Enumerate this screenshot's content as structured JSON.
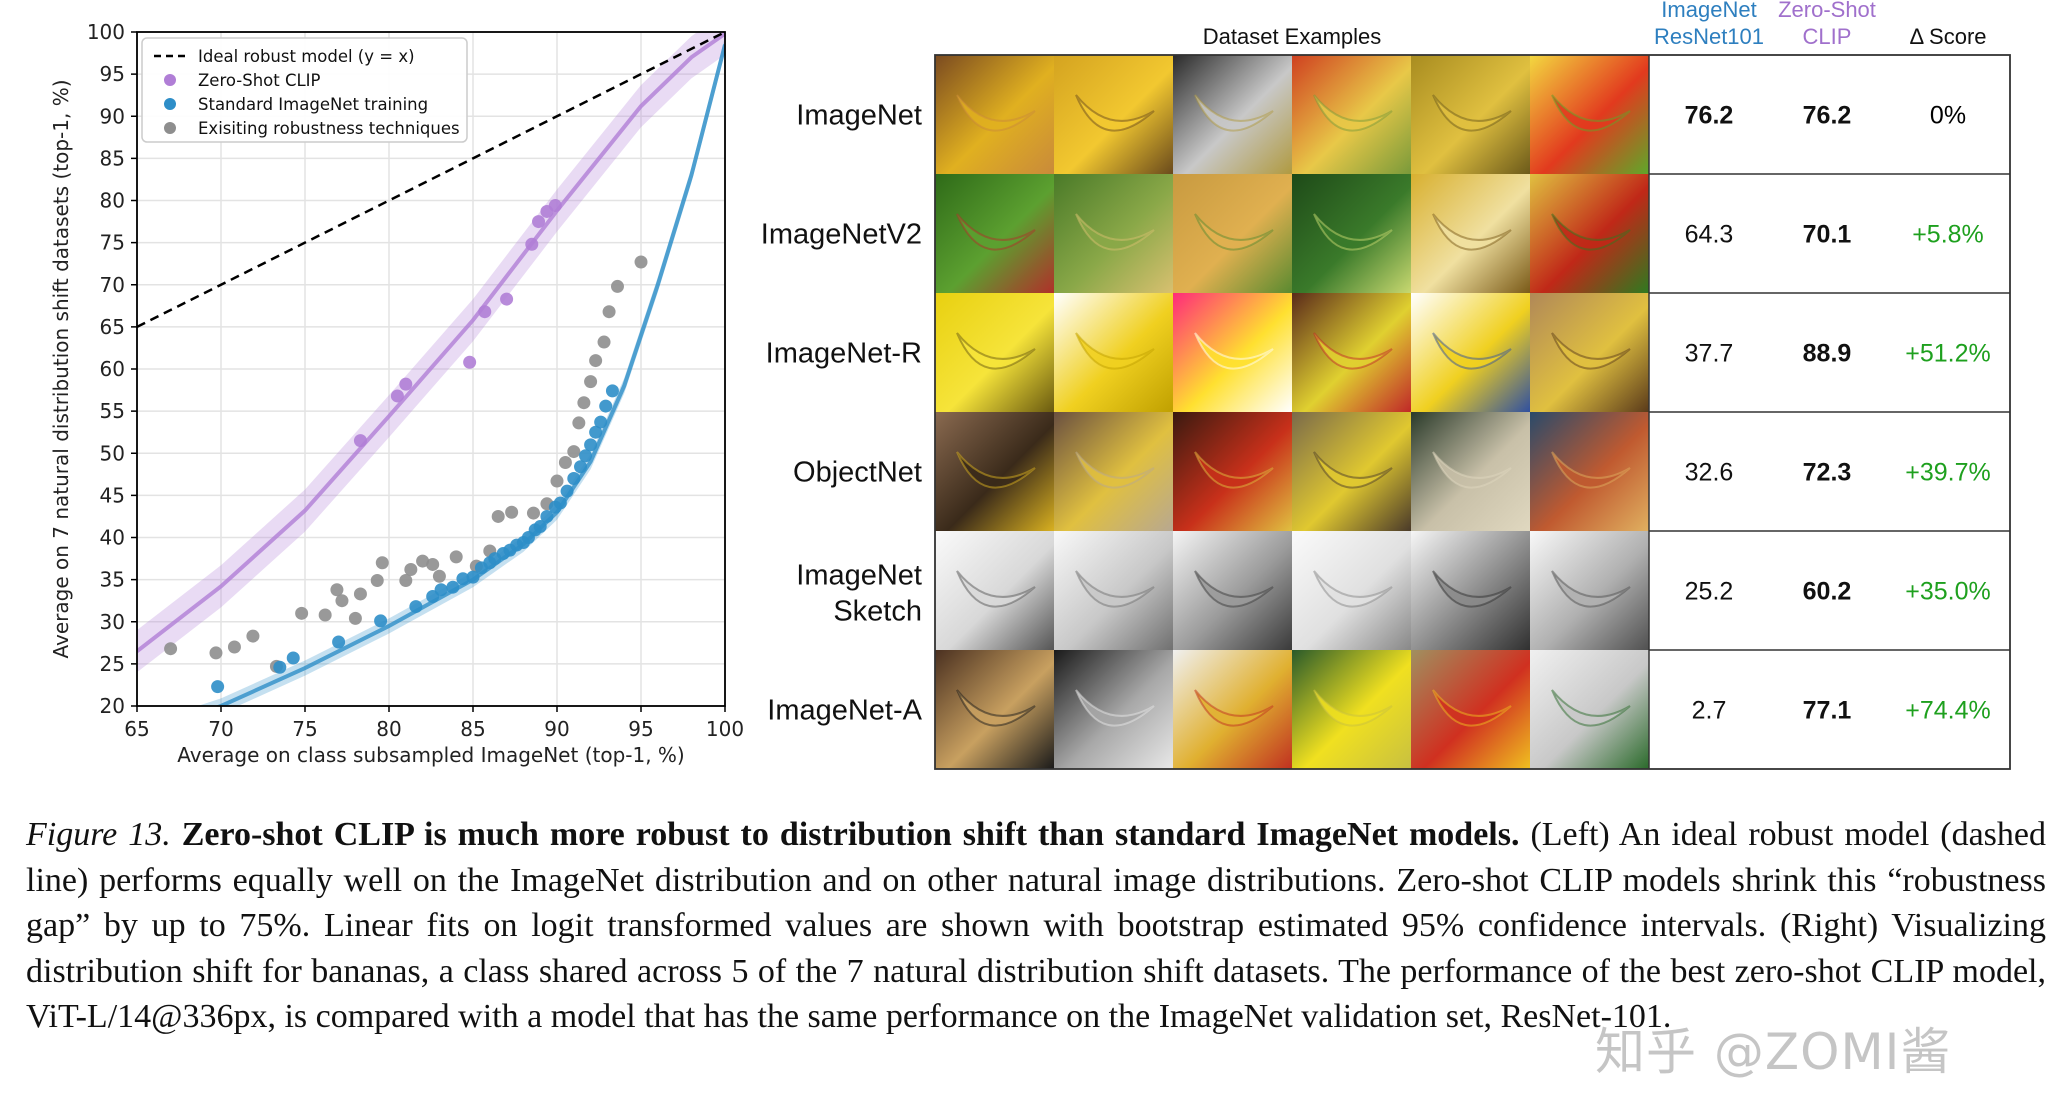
{
  "chart_data": {
    "type": "scatter",
    "xlabel": "Average on class subsampled ImageNet (top-1, %)",
    "ylabel": "Average on 7 natural distribution shift datasets (top-1, %)",
    "xlim": [
      65,
      100
    ],
    "ylim": [
      20,
      100
    ],
    "xticks": [
      "65",
      "70",
      "75",
      "80",
      "85",
      "90",
      "95",
      "100"
    ],
    "yticks": [
      "20",
      "25",
      "30",
      "35",
      "40",
      "45",
      "50",
      "55",
      "60",
      "65",
      "70",
      "75",
      "80",
      "85",
      "90",
      "95",
      "100"
    ],
    "grid": true,
    "legend_position": "top-left",
    "legend": [
      {
        "label": "Ideal robust model (y = x)",
        "marker": "dashed-line",
        "color": "#000000"
      },
      {
        "label": "Zero-Shot CLIP",
        "marker": "dot",
        "color": "#b07ed6"
      },
      {
        "label": "Standard ImageNet training",
        "marker": "dot",
        "color": "#2e8ec8"
      },
      {
        "label": "Exisiting robustness techniques",
        "marker": "dot",
        "color": "#8e8e8e"
      }
    ],
    "series": [
      {
        "name": "Zero-Shot CLIP",
        "color": "#b07ed6",
        "points": [
          [
            78.3,
            51.5
          ],
          [
            80.5,
            56.8
          ],
          [
            81.0,
            58.2
          ],
          [
            84.8,
            60.8
          ],
          [
            85.7,
            66.8
          ],
          [
            87.0,
            68.3
          ],
          [
            88.5,
            74.8
          ],
          [
            88.9,
            77.5
          ],
          [
            89.4,
            78.7
          ],
          [
            89.9,
            79.4
          ]
        ]
      },
      {
        "name": "Standard ImageNet training",
        "color": "#2e8ec8",
        "points": [
          [
            69.8,
            22.3
          ],
          [
            73.5,
            24.6
          ],
          [
            74.3,
            25.7
          ],
          [
            77.0,
            27.6
          ],
          [
            79.5,
            30.1
          ],
          [
            81.6,
            31.8
          ],
          [
            82.6,
            33.0
          ],
          [
            83.1,
            33.8
          ],
          [
            83.8,
            34.1
          ],
          [
            84.4,
            35.1
          ],
          [
            85.0,
            35.3
          ],
          [
            85.5,
            36.4
          ],
          [
            86.0,
            37.0
          ],
          [
            86.3,
            37.5
          ],
          [
            86.8,
            38.1
          ],
          [
            87.2,
            38.5
          ],
          [
            87.6,
            39.1
          ],
          [
            88.0,
            39.4
          ],
          [
            88.3,
            40.0
          ],
          [
            88.7,
            40.9
          ],
          [
            89.0,
            41.3
          ],
          [
            89.4,
            42.5
          ],
          [
            89.9,
            43.6
          ],
          [
            90.2,
            44.1
          ],
          [
            90.6,
            45.5
          ],
          [
            91.0,
            47.0
          ],
          [
            91.4,
            48.4
          ],
          [
            91.7,
            49.7
          ],
          [
            92.0,
            51.0
          ],
          [
            92.3,
            52.5
          ],
          [
            92.6,
            53.7
          ],
          [
            92.9,
            55.6
          ],
          [
            93.3,
            57.4
          ]
        ]
      },
      {
        "name": "Exisiting robustness techniques",
        "color": "#8e8e8e",
        "points": [
          [
            67.0,
            26.8
          ],
          [
            69.7,
            26.3
          ],
          [
            70.8,
            27.0
          ],
          [
            71.9,
            28.3
          ],
          [
            73.3,
            24.7
          ],
          [
            74.8,
            31.0
          ],
          [
            76.2,
            30.8
          ],
          [
            76.9,
            33.8
          ],
          [
            77.2,
            32.5
          ],
          [
            78.0,
            30.4
          ],
          [
            78.3,
            33.3
          ],
          [
            79.3,
            34.9
          ],
          [
            79.6,
            37.0
          ],
          [
            81.0,
            34.9
          ],
          [
            81.3,
            36.2
          ],
          [
            82.0,
            37.2
          ],
          [
            82.6,
            36.8
          ],
          [
            83.0,
            35.4
          ],
          [
            84.0,
            37.7
          ],
          [
            85.2,
            36.6
          ],
          [
            86.0,
            38.4
          ],
          [
            86.5,
            42.5
          ],
          [
            87.3,
            43.0
          ],
          [
            88.6,
            42.9
          ],
          [
            89.4,
            44.0
          ],
          [
            90.0,
            46.7
          ],
          [
            90.5,
            48.9
          ],
          [
            91.0,
            50.2
          ],
          [
            91.3,
            53.6
          ],
          [
            91.6,
            56.0
          ],
          [
            92.0,
            58.5
          ],
          [
            92.3,
            61.0
          ],
          [
            92.8,
            63.2
          ],
          [
            93.1,
            66.8
          ],
          [
            93.6,
            69.8
          ],
          [
            95.0,
            72.7
          ]
        ]
      }
    ],
    "reference_line": {
      "name": "Ideal robust model (y = x)",
      "x": [
        65,
        100
      ],
      "y": [
        65,
        100
      ]
    },
    "fits": [
      {
        "name": "Zero-Shot CLIP fit",
        "color": "#b07ed6",
        "points": [
          [
            65,
            26.5
          ],
          [
            70,
            34.2
          ],
          [
            75,
            43.2
          ],
          [
            80,
            54.4
          ],
          [
            85,
            65.8
          ],
          [
            90,
            78.8
          ],
          [
            95,
            91.2
          ],
          [
            98,
            97.0
          ],
          [
            100,
            99.8
          ]
        ],
        "band": 2.5
      },
      {
        "name": "Standard ImageNet training fit",
        "color": "#2e8ec8",
        "points": [
          [
            68,
            18.7
          ],
          [
            70,
            20.0
          ],
          [
            75,
            24.5
          ],
          [
            80,
            29.5
          ],
          [
            85,
            35.0
          ],
          [
            88,
            39.2
          ],
          [
            90,
            43.0
          ],
          [
            92,
            49.0
          ],
          [
            94,
            58.0
          ],
          [
            96,
            70.0
          ],
          [
            98,
            83.0
          ],
          [
            100,
            98.5
          ]
        ],
        "band": 0.9
      }
    ]
  },
  "table": {
    "header": {
      "examples": "Dataset Examples",
      "resnet_line1": "ImageNet",
      "resnet_line2": "ResNet101",
      "clip_line1": "Zero-Shot",
      "clip_line2": "CLIP",
      "delta": "Δ Score"
    },
    "colors": {
      "resnet_header": "#2e7fbf",
      "clip_header": "#a070cc",
      "delta_positive": "#1ea01e",
      "delta_zero": "#000000"
    },
    "rows": [
      {
        "dataset_lines": [
          "ImageNet"
        ],
        "resnet": "76.2",
        "clip": "76.2",
        "delta": "0%",
        "resnet_bold": true,
        "clip_bold": true,
        "swatches": [
          [
            "#7a4a20",
            "#e0b020",
            "#c98a3a"
          ],
          [
            "#d4a320",
            "#f2c830",
            "#6a4a1c"
          ],
          [
            "#2a2a2a",
            "#c8c8c8",
            "#b09a40"
          ],
          [
            "#cf4020",
            "#e8c848",
            "#7a9a3a"
          ],
          [
            "#a88c20",
            "#e0c040",
            "#6c5a1a"
          ],
          [
            "#f3d840",
            "#e23a1e",
            "#5ea82a"
          ]
        ]
      },
      {
        "dataset_lines": [
          "ImageNetV2"
        ],
        "resnet": "64.3",
        "clip": "70.1",
        "delta": "+5.8%",
        "resnet_bold": false,
        "clip_bold": true,
        "swatches": [
          [
            "#2e6a18",
            "#5ca030",
            "#b0302a"
          ],
          [
            "#4a7a28",
            "#8aa848",
            "#d8c070"
          ],
          [
            "#c89a40",
            "#e0b050",
            "#5a8a30"
          ],
          [
            "#1e4a18",
            "#3a7a2a",
            "#c8d870"
          ],
          [
            "#d8b030",
            "#f0e0a0",
            "#7a5a18"
          ],
          [
            "#e0c040",
            "#c02818",
            "#2e7a20"
          ]
        ]
      },
      {
        "dataset_lines": [
          "ImageNet-R"
        ],
        "resnet": "37.7",
        "clip": "88.9",
        "delta": "+51.2%",
        "resnet_bold": false,
        "clip_bold": true,
        "swatches": [
          [
            "#e8d010",
            "#f6e43a",
            "#6a5a10"
          ],
          [
            "#ffffff",
            "#f0d020",
            "#c0a000"
          ],
          [
            "#ff2a7a",
            "#ffe030",
            "#ffffff"
          ],
          [
            "#5a2a1a",
            "#e0d030",
            "#c02828"
          ],
          [
            "#ffffff",
            "#f0d020",
            "#3050a0"
          ],
          [
            "#b08858",
            "#e0c040",
            "#5a3a1a"
          ]
        ]
      },
      {
        "dataset_lines": [
          "ObjectNet"
        ],
        "resnet": "32.6",
        "clip": "72.3",
        "delta": "+39.7%",
        "resnet_bold": false,
        "clip_bold": true,
        "swatches": [
          [
            "#8a6a50",
            "#3a2a1a",
            "#d8b020"
          ],
          [
            "#6a5040",
            "#e0c040",
            "#b8a890"
          ],
          [
            "#3a1a10",
            "#c8301a",
            "#e0c040"
          ],
          [
            "#7a6a4a",
            "#e0c830",
            "#4a3a2a"
          ],
          [
            "#2a3a2a",
            "#c8c0a8",
            "#e0d8c0"
          ],
          [
            "#2a4a6a",
            "#c05a30",
            "#e0b060"
          ]
        ]
      },
      {
        "dataset_lines": [
          "ImageNet",
          "Sketch"
        ],
        "resnet": "25.2",
        "clip": "60.2",
        "delta": "+35.0%",
        "resnet_bold": false,
        "clip_bold": true,
        "swatches": [
          [
            "#fafafa",
            "#d8d8d8",
            "#555555"
          ],
          [
            "#f8f8f8",
            "#c8c8c8",
            "#707070"
          ],
          [
            "#f4f4f4",
            "#9a9a9a",
            "#3a3a3a"
          ],
          [
            "#fafafa",
            "#e0e0e0",
            "#888888"
          ],
          [
            "#f6f6f6",
            "#8a8a8a",
            "#303030"
          ],
          [
            "#f8f8f8",
            "#b0b0b0",
            "#505050"
          ]
        ]
      },
      {
        "dataset_lines": [
          "ImageNet-A"
        ],
        "resnet": "2.7",
        "clip": "77.1",
        "delta": "+74.4%",
        "resnet_bold": false,
        "clip_bold": true,
        "swatches": [
          [
            "#4a3020",
            "#c8a060",
            "#1a1a1a"
          ],
          [
            "#1a1a1a",
            "#a8a8a8",
            "#e8e8e8"
          ],
          [
            "#f0f0f0",
            "#e0b030",
            "#c03020"
          ],
          [
            "#2a5a2a",
            "#f0e020",
            "#c8c040"
          ],
          [
            "#a09060",
            "#d03020",
            "#f0c020"
          ],
          [
            "#f0f0f0",
            "#c8c8c8",
            "#2a6a2a"
          ]
        ]
      }
    ]
  },
  "caption": {
    "label": "Figure 13.",
    "title": "Zero-shot CLIP is much more robust to distribution shift than standard ImageNet models.",
    "body": "(Left) An ideal robust model (dashed line) performs equally well on the ImageNet distribution and on other natural image distributions. Zero-shot CLIP models shrink this “robustness gap” by up to 75%. Linear fits on logit transformed values are shown with bootstrap estimated 95% confidence intervals. (Right) Visualizing distribution shift for bananas, a class shared across 5 of the 7 natural distribution shift datasets. The performance of the best zero-shot CLIP model, ViT-L/14@336px, is compared with a model that has the same performance on the ImageNet validation set, ResNet-101."
  },
  "watermark": "知乎 @ZOMI酱"
}
